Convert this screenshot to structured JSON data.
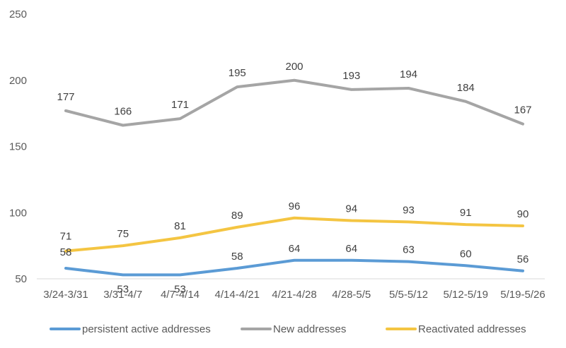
{
  "chart_data": {
    "type": "line",
    "categories": [
      "3/24-3/31",
      "3/31-4/7",
      "4/7-4/14",
      "4/14-4/21",
      "4/21-4/28",
      "4/28-5/5",
      "5/5-5/12",
      "5/12-5/19",
      "5/19-5/26"
    ],
    "series": [
      {
        "name": "persistent active addresses",
        "color": "#5B9BD5",
        "values": [
          58,
          53,
          53,
          58,
          64,
          64,
          63,
          60,
          56
        ]
      },
      {
        "name": "New addresses",
        "color": "#A5A5A5",
        "values": [
          177,
          166,
          171,
          195,
          200,
          193,
          194,
          184,
          167
        ]
      },
      {
        "name": "Reactivated addresses",
        "color": "#F4C542",
        "values": [
          71,
          75,
          81,
          89,
          96,
          94,
          93,
          91,
          90
        ]
      }
    ],
    "ylim": [
      50,
      250
    ],
    "yticks": [
      50,
      100,
      150,
      200,
      250
    ],
    "grid": false,
    "legend_position": "bottom",
    "data_labels": true
  }
}
